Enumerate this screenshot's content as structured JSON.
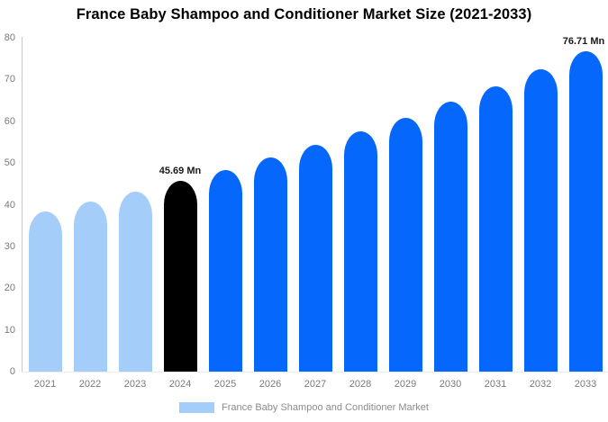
{
  "title": "France Baby Shampoo and Conditioner Market Size (2021-2033)",
  "legend": {
    "label": "France Baby Shampoo and Conditioner Market",
    "swatch_color": "#A4CDF9"
  },
  "colors": {
    "historical_bar": "#A4CDF9",
    "base_year_bar": "#000000",
    "forecast_bar": "#0667FD",
    "axis_line": "#c9c9c9",
    "baseline": "#ececec",
    "tick_text": "#7a7a7a",
    "legend_text": "#8c8c8c",
    "annotation_text": "#1a1a1a",
    "title_text": "#000000",
    "background": "#ffffff"
  },
  "chart_data": {
    "type": "bar",
    "title": "France Baby Shampoo and Conditioner Market Size (2021-2033)",
    "unit": "Mn",
    "xlabel": "",
    "ylabel": "",
    "ylim": [
      0,
      80
    ],
    "yticks": [
      0,
      10,
      20,
      30,
      40,
      50,
      60,
      70,
      80
    ],
    "grid": false,
    "legend_position": "bottom",
    "categories": [
      "2021",
      "2022",
      "2023",
      "2024",
      "2025",
      "2026",
      "2027",
      "2028",
      "2029",
      "2030",
      "2031",
      "2032",
      "2033"
    ],
    "values": [
      38.4,
      40.7,
      43.1,
      45.69,
      48.4,
      51.3,
      54.3,
      57.5,
      60.9,
      64.6,
      68.4,
      72.4,
      76.71
    ],
    "segments": [
      "historical",
      "historical",
      "historical",
      "base_year",
      "forecast",
      "forecast",
      "forecast",
      "forecast",
      "forecast",
      "forecast",
      "forecast",
      "forecast",
      "forecast"
    ],
    "annotations": [
      {
        "category": "2024",
        "text": "45.69 Mn"
      },
      {
        "category": "2033",
        "text": "76.71 Mn"
      }
    ]
  }
}
